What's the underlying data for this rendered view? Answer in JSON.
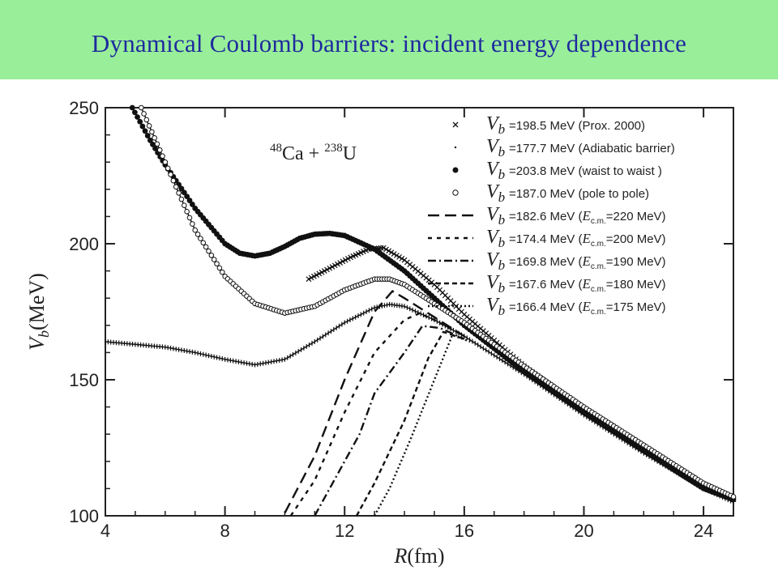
{
  "slide": {
    "title": "Dynamical Coulomb barriers: incident energy dependence",
    "banner_color": "#99ef99",
    "title_color": "#1f2b9e"
  },
  "chart_data": {
    "type": "line",
    "title": "",
    "xlabel": "R(fm)",
    "ylabel": "V_b(MeV)",
    "xlim": [
      4,
      25
    ],
    "ylim": [
      100,
      250
    ],
    "xticks": [
      4,
      8,
      12,
      16,
      20,
      24
    ],
    "yticks": [
      100,
      150,
      200,
      250
    ],
    "grid": false,
    "legend_position": "top-right",
    "annotation": {
      "mass_a": "48",
      "element_a": "Ca",
      "plus": "+",
      "mass_b": "238",
      "element_b": "U"
    },
    "series": [
      {
        "symbol": "V",
        "subscript": "b",
        "label": "=198.5 MeV (Prox. 2000)",
        "marker": "cross",
        "points": [
          [
            10.8,
            187
          ],
          [
            11.5,
            191
          ],
          [
            12.2,
            195
          ],
          [
            12.8,
            198
          ],
          [
            13.3,
            198.5
          ],
          [
            14,
            194
          ],
          [
            15,
            185
          ],
          [
            16,
            174
          ],
          [
            18,
            155
          ],
          [
            20,
            139
          ],
          [
            22,
            124
          ],
          [
            24,
            111
          ],
          [
            25,
            106
          ]
        ]
      },
      {
        "symbol": "V",
        "subscript": "b",
        "label": "=177.7 MeV (Adiabatic barrier)",
        "marker": "plus-small",
        "points": [
          [
            4,
            164
          ],
          [
            5,
            163
          ],
          [
            6,
            162
          ],
          [
            7,
            160
          ],
          [
            8,
            157.5
          ],
          [
            9,
            155.5
          ],
          [
            10,
            157.5
          ],
          [
            11,
            164
          ],
          [
            12,
            171
          ],
          [
            13,
            176.5
          ],
          [
            13.5,
            177.7
          ],
          [
            14,
            177
          ],
          [
            15,
            172
          ],
          [
            16,
            166
          ],
          [
            18,
            152
          ],
          [
            20,
            137
          ],
          [
            22,
            123
          ],
          [
            24,
            110
          ],
          [
            25,
            105
          ]
        ]
      },
      {
        "symbol": "V",
        "subscript": "b",
        "label": "=203.8 MeV (waist to waist )",
        "marker": "filled-circle",
        "points": [
          [
            4.9,
            250
          ],
          [
            5.5,
            238
          ],
          [
            6,
            229
          ],
          [
            7,
            213
          ],
          [
            8,
            200
          ],
          [
            8.5,
            196.5
          ],
          [
            9,
            195.5
          ],
          [
            9.5,
            196.5
          ],
          [
            10,
            199
          ],
          [
            10.5,
            202
          ],
          [
            11,
            203.5
          ],
          [
            11.5,
            203.8
          ],
          [
            12,
            203
          ],
          [
            13,
            198
          ],
          [
            14,
            190
          ],
          [
            15,
            180
          ],
          [
            16,
            170
          ],
          [
            18,
            153
          ],
          [
            20,
            138
          ],
          [
            22,
            124
          ],
          [
            24,
            110
          ],
          [
            25,
            106
          ]
        ]
      },
      {
        "symbol": "V",
        "subscript": "b",
        "label": "=187.0 MeV (pole to pole)",
        "marker": "open-circle",
        "points": [
          [
            5.2,
            250
          ],
          [
            6,
            230
          ],
          [
            7,
            205
          ],
          [
            8,
            188
          ],
          [
            9,
            178
          ],
          [
            10,
            174.5
          ],
          [
            11,
            177
          ],
          [
            12,
            183
          ],
          [
            13,
            187
          ],
          [
            13.5,
            187
          ],
          [
            14,
            185
          ],
          [
            15,
            178
          ],
          [
            16,
            171
          ],
          [
            18,
            155
          ],
          [
            20,
            140
          ],
          [
            22,
            126
          ],
          [
            24,
            112
          ],
          [
            25,
            107
          ]
        ]
      },
      {
        "symbol": "V",
        "subscript": "b",
        "label": "=182.6 MeV (E_c.m.=220 MeV)",
        "marker": "long-dash",
        "points": [
          [
            10,
            101
          ],
          [
            11,
            122
          ],
          [
            12,
            150
          ],
          [
            13,
            175
          ],
          [
            13.6,
            182.6
          ],
          [
            14,
            180
          ],
          [
            15,
            173
          ],
          [
            16,
            166
          ]
        ]
      },
      {
        "symbol": "V",
        "subscript": "b",
        "label": "=174.4 MeV (E_c.m.=200 MeV)",
        "marker": "short-dash",
        "points": [
          [
            10.2,
            100
          ],
          [
            11,
            113
          ],
          [
            12,
            138
          ],
          [
            13,
            160
          ],
          [
            14,
            172
          ],
          [
            14.5,
            174.4
          ],
          [
            15,
            172
          ],
          [
            16,
            166
          ]
        ]
      },
      {
        "symbol": "V",
        "subscript": "b",
        "label": "=169.8 MeV (E_c.m.=190 MeV)",
        "marker": "dash-dot",
        "points": [
          [
            11,
            100
          ],
          [
            12,
            120
          ],
          [
            12.5,
            130
          ],
          [
            13,
            145
          ],
          [
            14,
            160
          ],
          [
            14.6,
            169.8
          ],
          [
            15.2,
            169
          ],
          [
            16,
            165
          ]
        ]
      },
      {
        "symbol": "V",
        "subscript": "b",
        "label": "=167.6 MeV (E_c.m.=180 MeV)",
        "marker": "dashed",
        "points": [
          [
            12.4,
            100
          ],
          [
            13,
            112
          ],
          [
            14,
            135
          ],
          [
            14.8,
            158
          ],
          [
            15.3,
            167.6
          ],
          [
            16,
            165
          ]
        ]
      },
      {
        "symbol": "V",
        "subscript": "b",
        "label": "=166.4 MeV (E_c.m.=175 MeV)",
        "marker": "dotted",
        "points": [
          [
            13,
            100
          ],
          [
            13.5,
            110
          ],
          [
            14.2,
            128
          ],
          [
            15,
            150
          ],
          [
            15.6,
            166.4
          ],
          [
            16.2,
            164
          ]
        ]
      }
    ]
  }
}
